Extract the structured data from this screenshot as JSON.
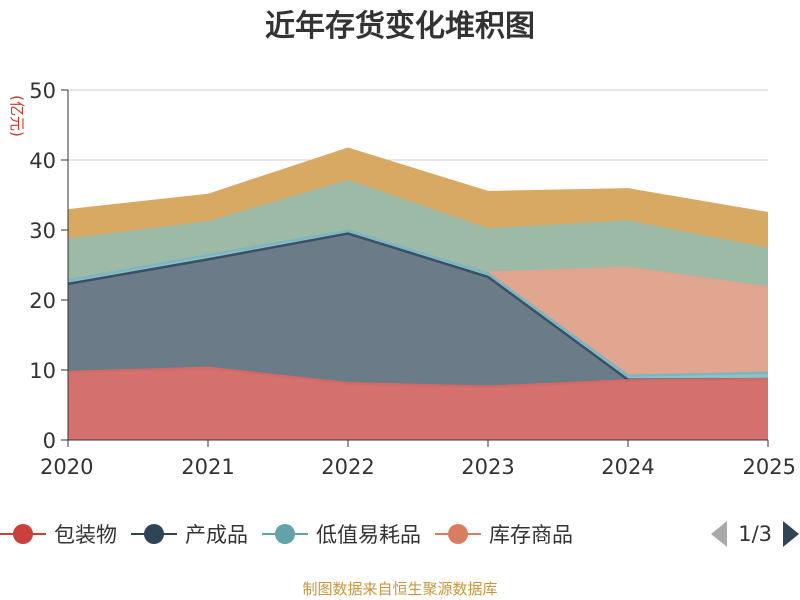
{
  "chart_data": {
    "type": "area",
    "stacked": false,
    "title": "近年存货变化堆积图",
    "ylabel": "(亿元)",
    "xlabel": "",
    "x": [
      "2020",
      "2021",
      "2022",
      "2023",
      "2024",
      "2025"
    ],
    "ylim": [
      0,
      50
    ],
    "yticks": [
      0,
      10,
      20,
      30,
      40,
      50
    ],
    "grid": true,
    "series": [
      {
        "name": "包装物",
        "color": "#d4706e",
        "line": "#d46a66",
        "values": [
          9.7,
          10.3,
          8.1,
          7.6,
          8.5,
          8.7
        ]
      },
      {
        "name": "产成品",
        "color": "#6b7b88",
        "line": "#3a5066",
        "values": [
          22.3,
          25.8,
          29.5,
          23.3,
          8.6,
          8.7
        ]
      },
      {
        "name": "低值易耗品",
        "color": "#8fc0c6",
        "line": "#7fb5c0",
        "values": [
          22.8,
          26.4,
          29.9,
          23.8,
          9.2,
          9.6
        ]
      },
      {
        "name": "库存商品",
        "color": "#e1a690",
        "line": "#e0a58f",
        "values": [
          null,
          null,
          null,
          23.9,
          24.6,
          21.8
        ]
      },
      {
        "name": "",
        "color": "#9dbaa7",
        "line": "#9dbaa7",
        "values": [
          28.6,
          31.1,
          37.0,
          30.1,
          31.2,
          27.3
        ]
      },
      {
        "name": "",
        "color": "#d8a962",
        "line": "#d8a962",
        "values": [
          32.8,
          35.0,
          41.6,
          35.4,
          35.8,
          32.4
        ]
      }
    ],
    "legend_position": "bottom"
  },
  "legend": {
    "items": [
      {
        "label": "包装物",
        "color": "#c9403d"
      },
      {
        "label": "产成品",
        "color": "#2e4557"
      },
      {
        "label": "低值易耗品",
        "color": "#62a2a8"
      },
      {
        "label": "库存商品",
        "color": "#d77e61"
      }
    ],
    "page": "1/3"
  },
  "footer": "制图数据来自恒生聚源数据库"
}
